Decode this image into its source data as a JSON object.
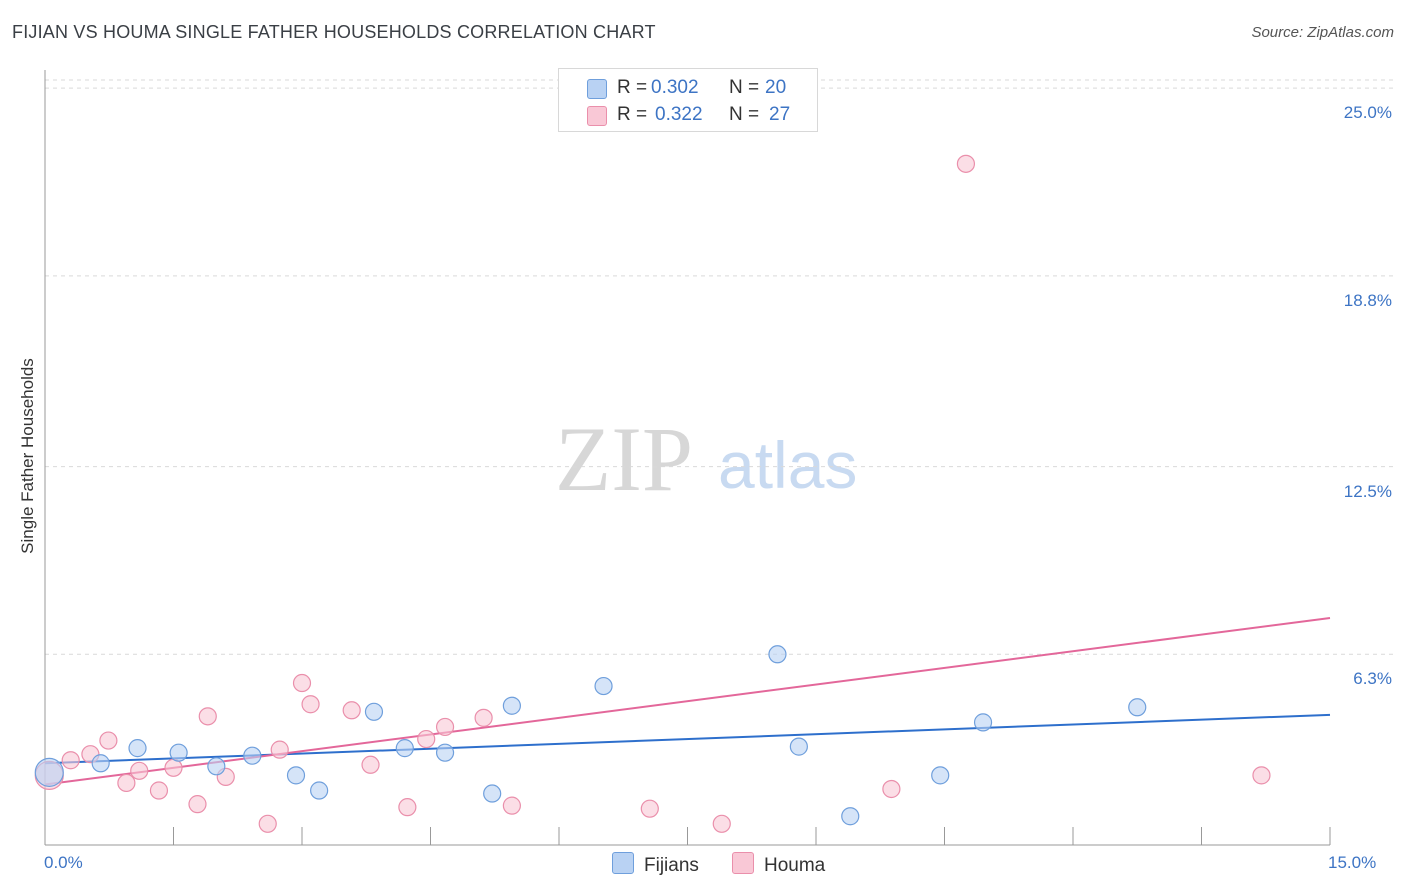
{
  "header": {
    "title": "FIJIAN VS HOUMA SINGLE FATHER HOUSEHOLDS CORRELATION CHART",
    "source": "Source: ZipAtlas.com"
  },
  "watermark": {
    "zip": "ZIP",
    "atlas": "atlas"
  },
  "colors": {
    "fijians_fill": "#b9d2f3",
    "fijians_stroke": "#6f9fdc",
    "fijians_line": "#2e6fcc",
    "houma_fill": "#f9c8d6",
    "houma_stroke": "#ea8fab",
    "houma_line": "#e3679a",
    "grid": "#d9d9d9",
    "tick_text": "#3d74c4"
  },
  "legend": {
    "rows": [
      {
        "r_label": "R =",
        "r_value": "0.302",
        "n_label": "N =",
        "n_value": "20"
      },
      {
        "r_label": "R =",
        "r_value": "0.322",
        "n_label": "N =",
        "n_value": "27"
      }
    ],
    "bottom": [
      {
        "label": "Fijians"
      },
      {
        "label": "Houma"
      }
    ]
  },
  "chart_data": {
    "type": "scatter",
    "title": "FIJIAN VS HOUMA SINGLE FATHER HOUSEHOLDS CORRELATION CHART",
    "xlabel": "",
    "ylabel": "Single Father Households",
    "xlim": [
      0,
      15
    ],
    "ylim": [
      0,
      25.6
    ],
    "x_tick_labels": [
      "0.0%",
      "15.0%"
    ],
    "y_ticks": [
      6.3,
      12.5,
      18.8,
      25.0
    ],
    "y_tick_labels": [
      "6.3%",
      "12.5%",
      "18.8%",
      "25.0%"
    ],
    "grid": true,
    "series": [
      {
        "name": "Fijians",
        "r": 0.302,
        "n": 20,
        "trend": {
          "x": [
            0,
            15
          ],
          "y": [
            2.7,
            4.3
          ]
        },
        "points": [
          {
            "x": 0.05,
            "y": 2.4,
            "big": true
          },
          {
            "x": 0.65,
            "y": 2.7
          },
          {
            "x": 1.08,
            "y": 3.2
          },
          {
            "x": 1.56,
            "y": 3.05
          },
          {
            "x": 2.0,
            "y": 2.6
          },
          {
            "x": 2.42,
            "y": 2.95
          },
          {
            "x": 2.93,
            "y": 2.3
          },
          {
            "x": 3.2,
            "y": 1.8
          },
          {
            "x": 3.84,
            "y": 4.4
          },
          {
            "x": 4.2,
            "y": 3.2
          },
          {
            "x": 4.67,
            "y": 3.05
          },
          {
            "x": 5.22,
            "y": 1.7
          },
          {
            "x": 5.45,
            "y": 4.6
          },
          {
            "x": 6.52,
            "y": 5.25
          },
          {
            "x": 8.55,
            "y": 6.3
          },
          {
            "x": 8.8,
            "y": 3.25
          },
          {
            "x": 9.4,
            "y": 0.95
          },
          {
            "x": 10.45,
            "y": 2.3
          },
          {
            "x": 10.95,
            "y": 4.05
          },
          {
            "x": 12.75,
            "y": 4.55
          }
        ]
      },
      {
        "name": "Houma",
        "r": 0.322,
        "n": 27,
        "trend": {
          "x": [
            0,
            15
          ],
          "y": [
            2.0,
            7.5
          ]
        },
        "points": [
          {
            "x": 0.05,
            "y": 2.3,
            "big": true
          },
          {
            "x": 0.3,
            "y": 2.8
          },
          {
            "x": 0.53,
            "y": 3.0
          },
          {
            "x": 0.74,
            "y": 3.45
          },
          {
            "x": 0.95,
            "y": 2.05
          },
          {
            "x": 1.1,
            "y": 2.45
          },
          {
            "x": 1.33,
            "y": 1.8
          },
          {
            "x": 1.5,
            "y": 2.55
          },
          {
            "x": 1.78,
            "y": 1.35
          },
          {
            "x": 1.9,
            "y": 4.25
          },
          {
            "x": 2.11,
            "y": 2.25
          },
          {
            "x": 2.6,
            "y": 0.7
          },
          {
            "x": 2.74,
            "y": 3.15
          },
          {
            "x": 3.0,
            "y": 5.35
          },
          {
            "x": 3.1,
            "y": 4.65
          },
          {
            "x": 3.58,
            "y": 4.45
          },
          {
            "x": 3.8,
            "y": 2.65
          },
          {
            "x": 4.23,
            "y": 1.25
          },
          {
            "x": 4.45,
            "y": 3.5
          },
          {
            "x": 4.67,
            "y": 3.9
          },
          {
            "x": 5.12,
            "y": 4.2
          },
          {
            "x": 5.45,
            "y": 1.3
          },
          {
            "x": 7.06,
            "y": 1.2
          },
          {
            "x": 7.9,
            "y": 0.7
          },
          {
            "x": 9.88,
            "y": 1.85
          },
          {
            "x": 10.75,
            "y": 22.5
          },
          {
            "x": 14.2,
            "y": 2.3
          }
        ]
      }
    ]
  }
}
